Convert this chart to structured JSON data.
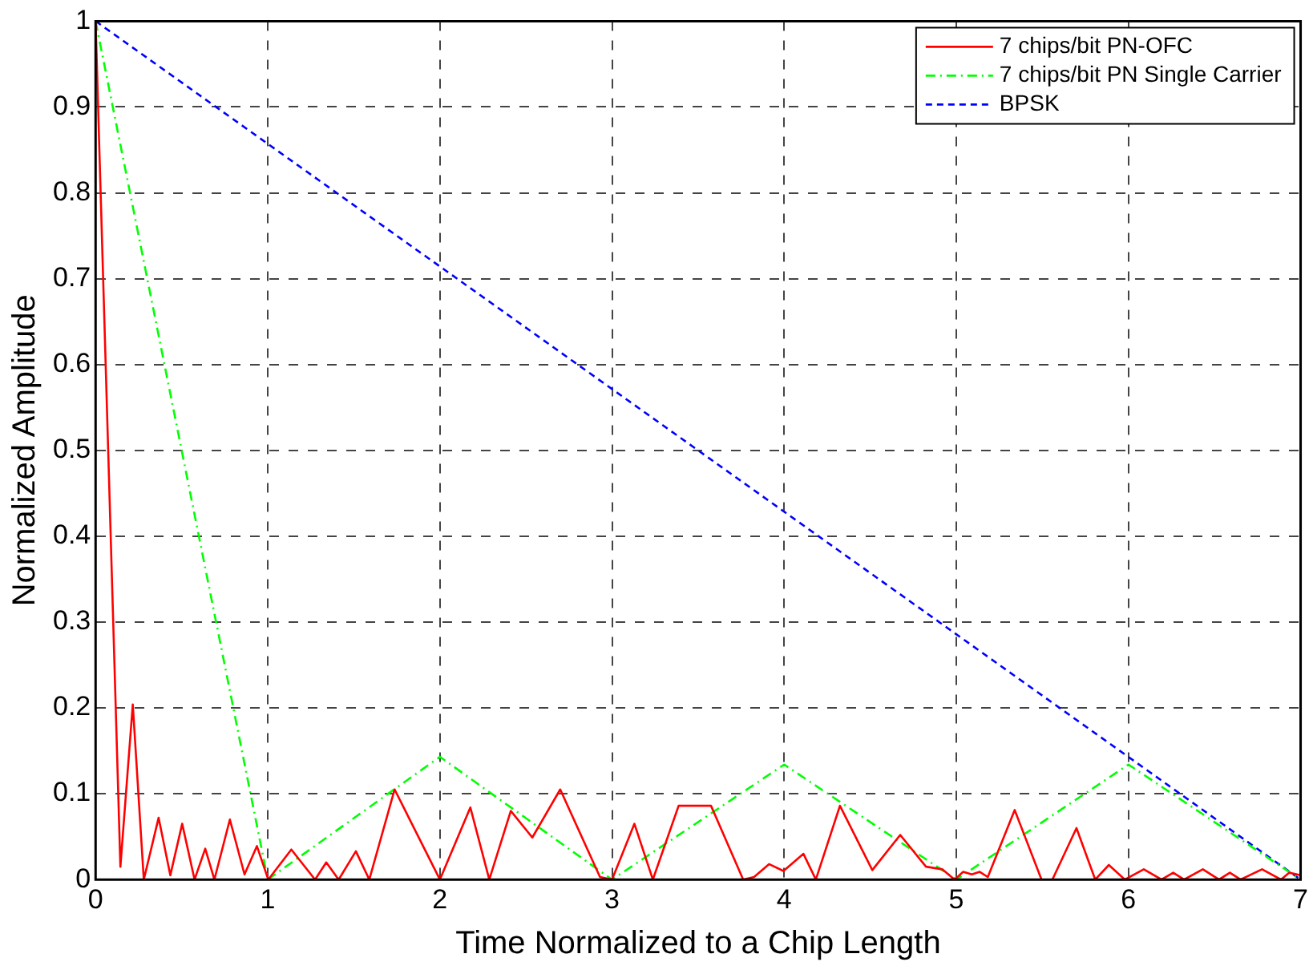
{
  "chart_data": {
    "type": "line",
    "xlabel": "Time Normalized to a Chip Length",
    "ylabel": "Normalized Amplitude",
    "xlim": [
      0,
      7
    ],
    "xticks": [
      0,
      1,
      2,
      3,
      4,
      5,
      6,
      7
    ],
    "ylim": [
      0,
      1
    ],
    "yticks": [
      0,
      0.1,
      0.2,
      0.3,
      0.4,
      0.5,
      0.6,
      0.7,
      0.8,
      0.9,
      1
    ],
    "grid": true,
    "legend": "top right",
    "marker": "none",
    "series": [
      {
        "name": "7 chips/bit PN-OFC",
        "color": "#ff0000",
        "line_style": "solid",
        "x": [
          0,
          0.144,
          0.216,
          0.28,
          0.366,
          0.434,
          0.503,
          0.575,
          0.637,
          0.69,
          0.78,
          0.865,
          0.937,
          1.003,
          1.137,
          1.275,
          1.34,
          1.412,
          1.512,
          1.59,
          1.737,
          2.0,
          2.177,
          2.287,
          2.412,
          2.537,
          2.699,
          2.93,
          3.0,
          3.13,
          3.237,
          3.387,
          3.575,
          3.762,
          3.825,
          3.912,
          3.996,
          4.112,
          4.184,
          4.324,
          4.512,
          4.674,
          4.824,
          4.918,
          4.99,
          5.04,
          5.09,
          5.136,
          5.183,
          5.339,
          5.495,
          5.558,
          5.698,
          5.807,
          5.886,
          5.979,
          6.089,
          6.192,
          6.26,
          6.323,
          6.432,
          6.526,
          6.589,
          6.651,
          6.776,
          6.886,
          6.933,
          7
        ],
        "values": [
          1,
          0.015,
          0.204,
          0,
          0.072,
          0.005,
          0.065,
          0,
          0.036,
          0,
          0.07,
          0.006,
          0.039,
          0,
          0.035,
          0,
          0.02,
          0,
          0.033,
          0,
          0.105,
          0,
          0.084,
          0,
          0.08,
          0.049,
          0.105,
          0.003,
          0,
          0.065,
          0,
          0.086,
          0.086,
          0,
          0.003,
          0.018,
          0.01,
          0.03,
          0,
          0.086,
          0.011,
          0.052,
          0.015,
          0.012,
          0,
          0.009,
          0.006,
          0.009,
          0.003,
          0.081,
          0,
          0,
          0.06,
          0,
          0.017,
          0,
          0.012,
          0,
          0.008,
          0,
          0.012,
          0,
          0.008,
          0,
          0.012,
          0,
          0.008,
          0.005
        ]
      },
      {
        "name": "7 chips/bit PN Single Carrier",
        "color": "#00ff00",
        "line_style": "dashdot",
        "x": [
          0,
          1,
          2,
          3,
          4,
          5,
          6,
          7
        ],
        "values": [
          1,
          0,
          0.143,
          0,
          0.134,
          0,
          0.134,
          0
        ]
      },
      {
        "name": "BPSK",
        "color": "#0000ff",
        "line_style": "dashed",
        "x": [
          0,
          7
        ],
        "values": [
          1,
          0
        ]
      }
    ]
  }
}
